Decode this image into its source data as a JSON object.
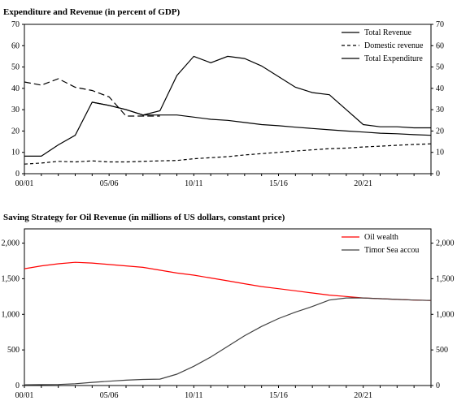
{
  "chart_data": [
    {
      "type": "line",
      "title": "Expenditure and Revenue (in percent of GDP)",
      "x_tick_labels": [
        "00/01",
        "05/06",
        "10/11",
        "15/16",
        "20/21"
      ],
      "x": [
        "00/01",
        "01/02",
        "02/03",
        "03/04",
        "04/05",
        "05/06",
        "06/07",
        "07/08",
        "08/09",
        "09/10",
        "10/11",
        "11/12",
        "12/13",
        "13/14",
        "14/15",
        "15/16",
        "16/17",
        "17/18",
        "18/19",
        "19/20",
        "20/21",
        "21/22",
        "22/23",
        "23/24",
        "24/25"
      ],
      "ylim": [
        0,
        70
      ],
      "y_ticks": [
        0,
        10,
        20,
        30,
        40,
        50,
        60,
        70
      ],
      "y_tick_labels": [
        "0",
        "10",
        "20",
        "30",
        "40",
        "50",
        "60",
        "70"
      ],
      "grid": false,
      "dual_y_axis": true,
      "legend_placement": "top-right",
      "series": [
        {
          "name": "Total Revenue",
          "style": "solid",
          "color": "#000000",
          "values": [
            8.2,
            8.2,
            13.5,
            18.0,
            33.5,
            32.0,
            30.0,
            27.5,
            29.5,
            46.0,
            55.0,
            52.0,
            55.0,
            54.0,
            50.5,
            45.5,
            40.5,
            38.0,
            37.0,
            30.0,
            23.0,
            22.0,
            22.0,
            21.5,
            21.5
          ]
        },
        {
          "name": "Domestic revenue",
          "style": "dashed",
          "color": "#000000",
          "values": [
            4.5,
            5.0,
            5.8,
            5.5,
            6.0,
            5.5,
            5.5,
            5.8,
            6.0,
            6.2,
            7.0,
            7.5,
            8.0,
            8.8,
            9.4,
            10.0,
            10.6,
            11.2,
            11.7,
            12.0,
            12.5,
            12.9,
            13.3,
            13.7,
            14.0
          ]
        },
        {
          "name": "Total Expenditure",
          "style": "longdash",
          "color": "#000000",
          "values": [
            43.0,
            41.5,
            44.5,
            40.5,
            39.0,
            36.0,
            27.0,
            27.0,
            27.0,
            null,
            null,
            null,
            null,
            null,
            null,
            null,
            null,
            null,
            null,
            null,
            null,
            null,
            null,
            null,
            null
          ],
          "values_solid": [
            null,
            null,
            null,
            null,
            33.5,
            32.0,
            30.0,
            27.5,
            27.5,
            27.5,
            26.5,
            25.5,
            25.0,
            24.0,
            23.0,
            22.5,
            21.8,
            21.2,
            20.6,
            20.0,
            19.5,
            19.0,
            18.7,
            18.3,
            18.0
          ]
        }
      ]
    },
    {
      "type": "line",
      "title": "Saving Strategy for Oil Revenue (in millions of US dollars, constant price)",
      "x_tick_labels": [
        "00/01",
        "05/06",
        "10/11",
        "15/16",
        "20/21"
      ],
      "x": [
        "00/01",
        "01/02",
        "02/03",
        "03/04",
        "04/05",
        "05/06",
        "06/07",
        "07/08",
        "08/09",
        "09/10",
        "10/11",
        "11/12",
        "12/13",
        "13/14",
        "14/15",
        "15/16",
        "16/17",
        "17/18",
        "18/19",
        "19/20",
        "20/21",
        "21/22",
        "22/23",
        "23/24",
        "24/25"
      ],
      "ylim": [
        0,
        2200
      ],
      "y_ticks": [
        0,
        500,
        1000,
        1500,
        2000
      ],
      "y_tick_labels": [
        "0",
        "500",
        "1,000",
        "1,500",
        "2,000"
      ],
      "grid": false,
      "dual_y_axis": true,
      "legend_placement": "top-right",
      "series": [
        {
          "name": "Oil wealth",
          "style": "solid",
          "color": "#ff0000",
          "values": [
            1640,
            1680,
            1710,
            1730,
            1720,
            1700,
            1680,
            1660,
            1620,
            1580,
            1550,
            1510,
            1470,
            1430,
            1390,
            1360,
            1330,
            1300,
            1270,
            1250,
            1230,
            1220,
            1210,
            1200,
            1195
          ]
        },
        {
          "name": "Timor Sea accou",
          "style": "solid",
          "color": "#404040",
          "values": [
            10,
            12,
            15,
            25,
            45,
            60,
            75,
            85,
            90,
            160,
            270,
            400,
            550,
            700,
            830,
            940,
            1030,
            1110,
            1200,
            1230,
            1230,
            1220,
            1210,
            1200,
            1195
          ]
        }
      ]
    }
  ]
}
